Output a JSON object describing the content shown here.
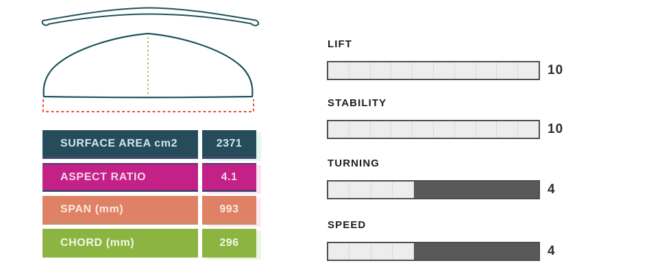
{
  "drawing": {
    "outline_color": "#1b5159",
    "center_line_color": "#b8c13b",
    "span_line_color": "#ee4136"
  },
  "specs": [
    {
      "label": "SURFACE AREA cm2",
      "value": "2371",
      "bg": "#264c5c",
      "text_color": "#cfe9ea",
      "border_bottom": "#464a6c",
      "shadow": "#e4f7f3"
    },
    {
      "label": "ASPECT RATIO",
      "value": "4.1",
      "bg": "#c32188",
      "text_color": "#f6d6eb",
      "border_bottom": "#513a6c",
      "border_top": "#513a6c",
      "shadow": "#fbe2f3"
    },
    {
      "label": "SPAN (mm)",
      "value": "993",
      "bg": "#df8164",
      "text_color": "#fcebe2",
      "border_bottom": "#c4926a",
      "shadow": "#fdeaf0"
    },
    {
      "label": "CHORD (mm)",
      "value": "296",
      "bg": "#8cb441",
      "text_color": "#f3f8ea",
      "shadow": "#ecf6e2"
    }
  ],
  "ratings": {
    "max": 10,
    "bar_colors": {
      "filled": "#ededed",
      "remainder": "#595959",
      "border": "#4d4d4d",
      "separator": "#d9d9d9"
    },
    "items": [
      {
        "label": "LIFT",
        "value": 10
      },
      {
        "label": "STABILITY",
        "value": 10
      },
      {
        "label": "TURNING",
        "value": 4
      },
      {
        "label": "SPEED",
        "value": 4
      }
    ]
  },
  "chart_data": {
    "type": "bar",
    "categories": [
      "LIFT",
      "STABILITY",
      "TURNING",
      "SPEED"
    ],
    "values": [
      10,
      10,
      4,
      4
    ],
    "title": "",
    "xlabel": "",
    "ylabel": "",
    "ylim": [
      0,
      10
    ]
  }
}
